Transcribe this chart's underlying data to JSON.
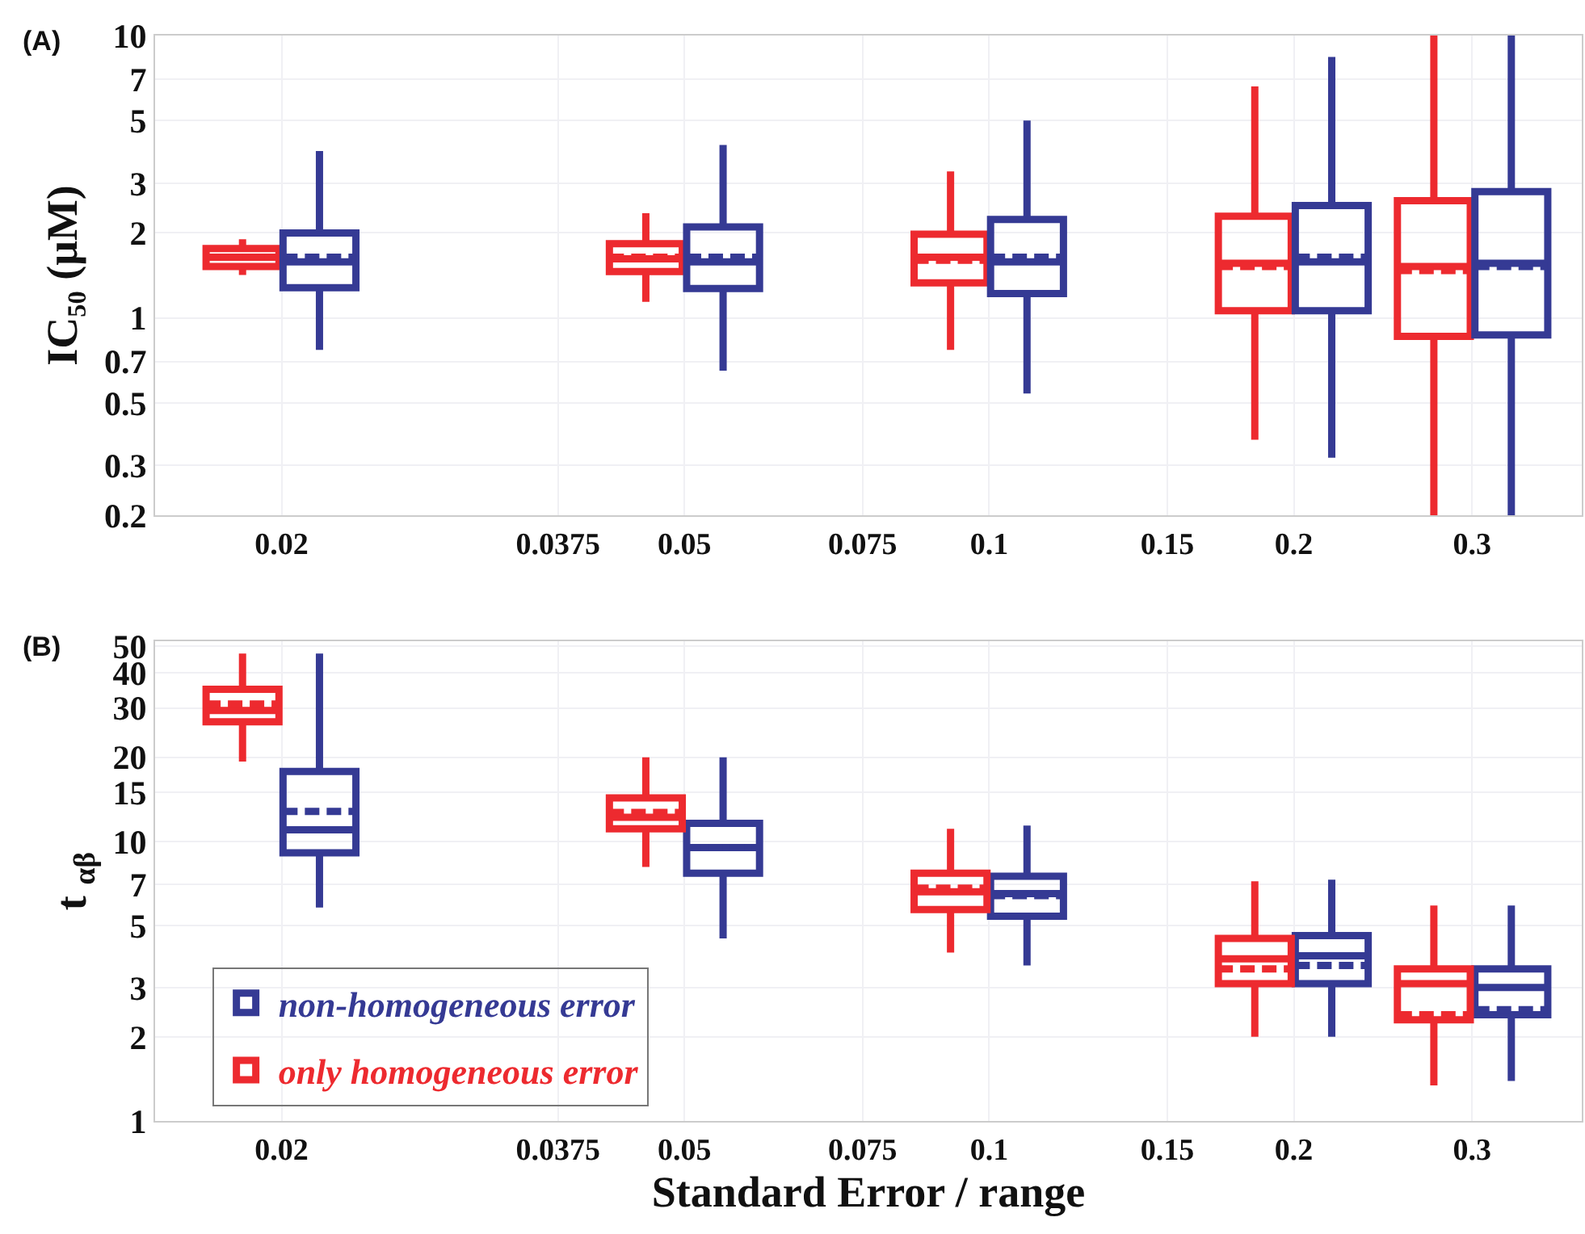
{
  "chart_data": [
    {
      "type": "box",
      "title": "(A)",
      "ylabel": "IC₅₀ (μM)",
      "log": "xy",
      "grid": true,
      "xlim": [
        0.015,
        0.385
      ],
      "xticks": [
        0.02,
        0.0375,
        0.05,
        0.075,
        0.1,
        0.15,
        0.2,
        0.3
      ],
      "ylim": [
        0.2,
        10
      ],
      "yticks": [
        0.2,
        0.3,
        0.5,
        0.7,
        1,
        2,
        3,
        5,
        7,
        10
      ],
      "series": [
        {
          "color": "#ed2a2f",
          "x": [
            0.0183,
            0.0458,
            0.0916,
            0.183,
            0.275
          ],
          "boxes": [
            {
              "low": 1.42,
              "q1": 1.52,
              "median": 1.64,
              "q3": 1.76,
              "high": 1.9,
              "mean": 1.64
            },
            {
              "low": 1.14,
              "q1": 1.46,
              "median": 1.62,
              "q3": 1.83,
              "high": 2.35,
              "mean": 1.64
            },
            {
              "low": 0.77,
              "q1": 1.33,
              "median": 1.64,
              "q3": 1.98,
              "high": 3.3,
              "mean": 1.6
            },
            {
              "low": 0.37,
              "q1": 1.06,
              "median": 1.56,
              "q3": 2.29,
              "high": 6.6,
              "mean": 1.52
            },
            {
              "low": 0.2,
              "q1": 0.86,
              "median": 1.52,
              "q3": 2.6,
              "high": 10,
              "mean": 1.47
            }
          ]
        },
        {
          "color": "#353a94",
          "x": [
            0.0218,
            0.0546,
            0.109,
            0.218,
            0.328
          ],
          "boxes": [
            {
              "low": 0.77,
              "q1": 1.28,
              "median": 1.58,
              "q3": 2.0,
              "high": 3.9,
              "mean": 1.64
            },
            {
              "low": 0.65,
              "q1": 1.27,
              "median": 1.58,
              "q3": 2.1,
              "high": 4.1,
              "mean": 1.64
            },
            {
              "low": 0.54,
              "q1": 1.22,
              "median": 1.58,
              "q3": 2.23,
              "high": 5.0,
              "mean": 1.64
            },
            {
              "low": 0.32,
              "q1": 1.06,
              "median": 1.58,
              "q3": 2.5,
              "high": 8.4,
              "mean": 1.64
            },
            {
              "low": 0.2,
              "q1": 0.87,
              "median": 1.56,
              "q3": 2.8,
              "high": 10,
              "mean": 1.52
            }
          ]
        }
      ]
    },
    {
      "type": "box",
      "title": "(B)",
      "ylabel": "t $_{αβ}$",
      "xlabel": "Standard Error / range",
      "log": "xy",
      "grid": true,
      "legend": "bottom left",
      "xlim": [
        0.015,
        0.385
      ],
      "xticks": [
        0.02,
        0.0375,
        0.05,
        0.075,
        0.1,
        0.15,
        0.2,
        0.3
      ],
      "ylim": [
        1,
        52
      ],
      "yticks": [
        1,
        2,
        3,
        5,
        7,
        10,
        15,
        20,
        30,
        40,
        50
      ],
      "series": [
        {
          "name": "non-homogeneous error",
          "color": "#353a94",
          "x": [
            0.0218,
            0.0546,
            0.109,
            0.218,
            0.328
          ],
          "boxes": [
            {
              "low": 5.8,
              "q1": 9.1,
              "median": 11,
              "q3": 17.8,
              "high": 47,
              "mean": 12.8
            },
            {
              "low": 4.5,
              "q1": 7.7,
              "median": 9.5,
              "q3": 11.6,
              "high": 20,
              "mean": 9.5
            },
            {
              "low": 3.6,
              "q1": 5.4,
              "median": 6.5,
              "q3": 7.5,
              "high": 11.4,
              "mean": 6.4
            },
            {
              "low": 2.0,
              "q1": 3.1,
              "median": 3.9,
              "q3": 4.6,
              "high": 7.3,
              "mean": 3.6
            },
            {
              "low": 1.39,
              "q1": 2.4,
              "median": 3.0,
              "q3": 3.5,
              "high": 5.9,
              "mean": 2.5
            }
          ]
        },
        {
          "name": "only homogeneous error",
          "color": "#ed2a2f",
          "x": [
            0.0183,
            0.0458,
            0.0916,
            0.183,
            0.275
          ],
          "boxes": [
            {
              "low": 19.3,
              "q1": 26.8,
              "median": 29.4,
              "q3": 35,
              "high": 47,
              "mean": 31
            },
            {
              "low": 8.1,
              "q1": 11.1,
              "median": 12.2,
              "q3": 14.3,
              "high": 20,
              "mean": 12.7
            },
            {
              "low": 4.0,
              "q1": 5.7,
              "median": 6.6,
              "q3": 7.7,
              "high": 11.1,
              "mean": 6.8
            },
            {
              "low": 2.0,
              "q1": 3.1,
              "median": 3.8,
              "q3": 4.5,
              "high": 7.2,
              "mean": 3.5
            },
            {
              "low": 1.34,
              "q1": 2.3,
              "median": 3.1,
              "q3": 3.5,
              "high": 5.9,
              "mean": 2.4
            }
          ]
        }
      ]
    }
  ]
}
